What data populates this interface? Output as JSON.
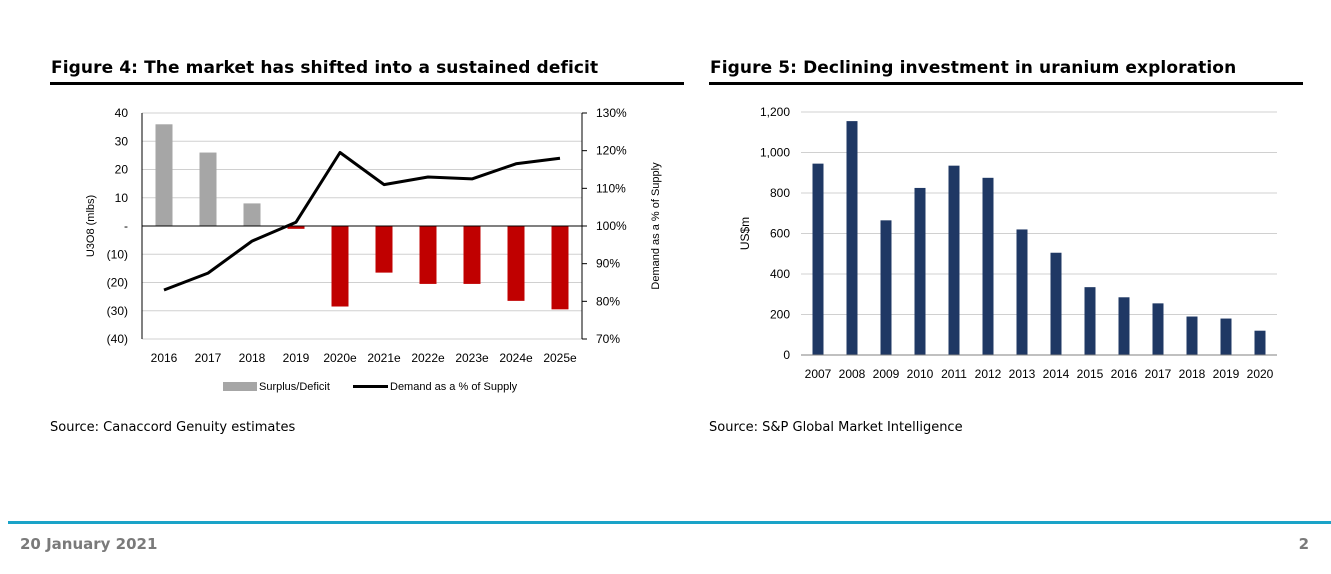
{
  "figures": [
    {
      "title": "Figure 4: The market has shifted into a sustained deficit",
      "source": "Source: Canaccord Genuity estimates"
    },
    {
      "title": "Figure 5: Declining investment in uranium exploration",
      "source": "Source: S&P Global Market Intelligence"
    }
  ],
  "footer": {
    "date": "20 January 2021",
    "page": "2"
  },
  "colors": {
    "surplus": "#a6a6a6",
    "deficit": "#c00000",
    "line": "#000000",
    "bars5": "#1f3864",
    "footer_rule": "#1aa3c8"
  },
  "chart_data": [
    {
      "type": "bar",
      "categories": [
        "2016",
        "2017",
        "2018",
        "2019",
        "2020e",
        "2021e",
        "2022e",
        "2023e",
        "2024e",
        "2025e"
      ],
      "series": [
        {
          "name": "Surplus/Deficit",
          "type": "bar",
          "axis": "left",
          "values": [
            36,
            26,
            8,
            -1,
            -28.5,
            -16.5,
            -20.5,
            -20.5,
            -26.5,
            -29.5
          ]
        },
        {
          "name": "Demand as a % of Supply",
          "type": "line",
          "axis": "right",
          "values": [
            83,
            87.5,
            96,
            101,
            119.5,
            111,
            113,
            112.5,
            116.5,
            118
          ]
        }
      ],
      "ylabel": "U3O8 (mlbs)",
      "y2label": "Demand as a % of Supply",
      "ylim": [
        -40,
        40
      ],
      "y2lim": [
        70,
        130
      ],
      "yticks": [
        40,
        30,
        20,
        10,
        0,
        -10,
        -20,
        -30,
        -40
      ],
      "ytick_labels": [
        "40",
        "30",
        "20",
        "10",
        "-",
        "(10)",
        "(20)",
        "(30)",
        "(40)"
      ],
      "y2ticks": [
        130,
        120,
        110,
        100,
        90,
        80,
        70
      ],
      "y2tick_labels": [
        "130%",
        "120%",
        "110%",
        "100%",
        "90%",
        "80%",
        "70%"
      ],
      "grid": true,
      "legend": "bottom"
    },
    {
      "type": "bar",
      "categories": [
        "2007",
        "2008",
        "2009",
        "2010",
        "2011",
        "2012",
        "2013",
        "2014",
        "2015",
        "2016",
        "2017",
        "2018",
        "2019",
        "2020"
      ],
      "values": [
        945,
        1155,
        665,
        825,
        935,
        875,
        620,
        505,
        335,
        285,
        255,
        190,
        180,
        120
      ],
      "ylabel": "US$m",
      "ylim": [
        0,
        1200
      ],
      "yticks": [
        0,
        200,
        400,
        600,
        800,
        1000,
        1200
      ],
      "ytick_labels": [
        "0",
        "200",
        "400",
        "600",
        "800",
        "1,000",
        "1,200"
      ],
      "grid": true
    }
  ]
}
